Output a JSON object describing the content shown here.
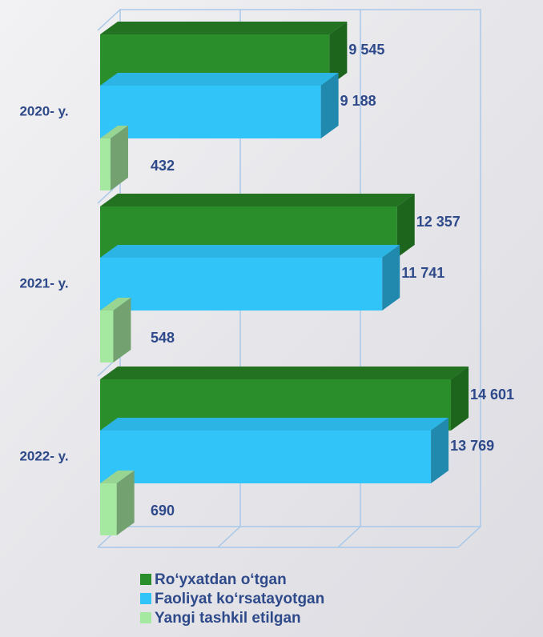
{
  "chart_data": {
    "type": "bar3d",
    "categories": [
      "2020- y.",
      "2021- y.",
      "2022- y."
    ],
    "series": [
      {
        "name": "Ro‘yxatdan o‘tgan",
        "color": "#2a8f2a",
        "values": [
          9545,
          12357,
          14601
        ],
        "value_labels": [
          "9 545",
          "12 357",
          "14 601"
        ]
      },
      {
        "name": "Faoliyat ko‘rsatayotgan",
        "color": "#30c4f8",
        "values": [
          9188,
          11741,
          13769
        ],
        "value_labels": [
          "9 188",
          "11 741",
          "13 769"
        ]
      },
      {
        "name": "Yangi tashkil etilgan",
        "color": "#a5e8a0",
        "values": [
          432,
          548,
          690
        ],
        "value_labels": [
          "432",
          "548",
          "690"
        ]
      }
    ],
    "xlim": [
      0,
      15000
    ]
  }
}
